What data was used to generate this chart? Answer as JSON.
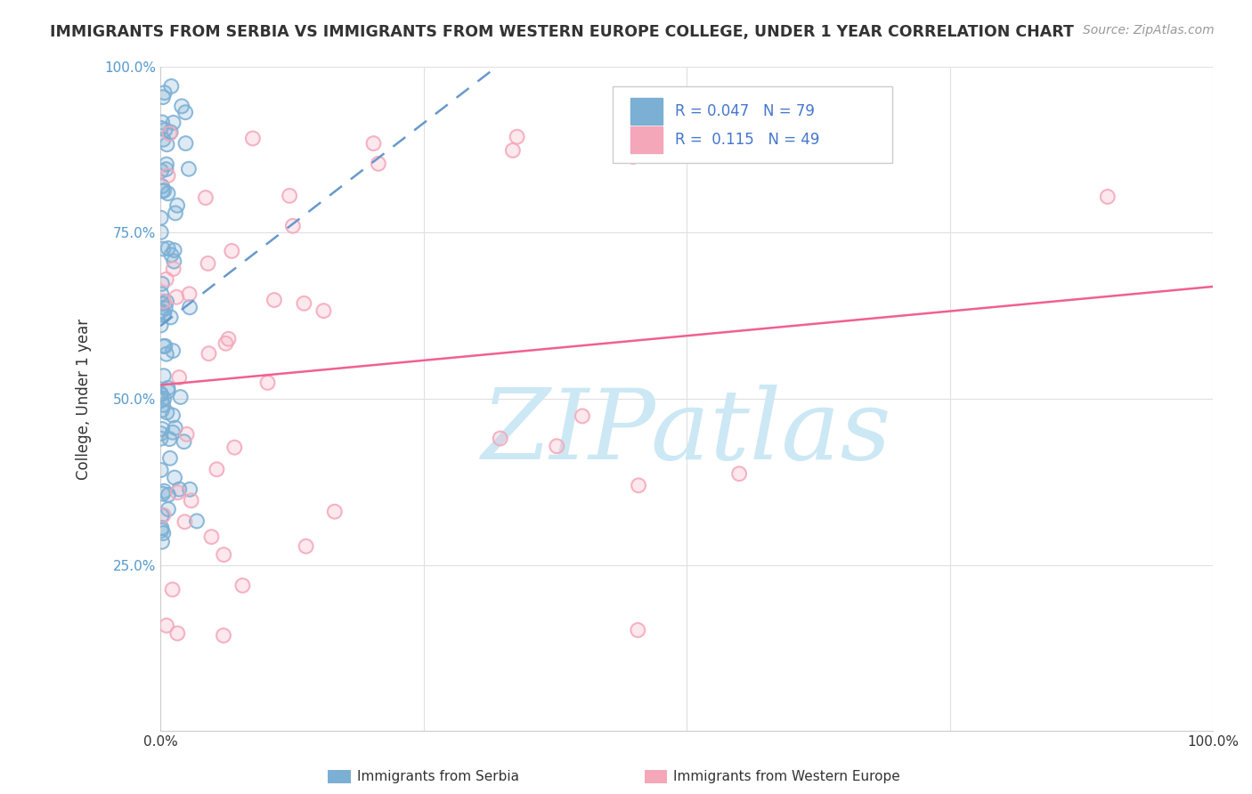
{
  "title": "IMMIGRANTS FROM SERBIA VS IMMIGRANTS FROM WESTERN EUROPE COLLEGE, UNDER 1 YEAR CORRELATION CHART",
  "source": "Source: ZipAtlas.com",
  "ylabel": "College, Under 1 year",
  "legend_serbia_R": "0.047",
  "legend_serbia_N": "79",
  "legend_we_R": "0.115",
  "legend_we_N": "49",
  "legend_label_serbia": "Immigrants from Serbia",
  "legend_label_we": "Immigrants from Western Europe",
  "color_serbia": "#7bafd4",
  "color_we": "#f4a7b9",
  "color_trendline_serbia": "#6699cc",
  "color_trendline_we": "#f06090",
  "watermark_color": "#cce8f4",
  "background_color": "#ffffff",
  "grid_color": "#e0e0e0",
  "title_color": "#333333",
  "source_color": "#999999",
  "ytick_color": "#5599cc",
  "xtick_color": "#333333",
  "legend_text_color": "#4477cc"
}
